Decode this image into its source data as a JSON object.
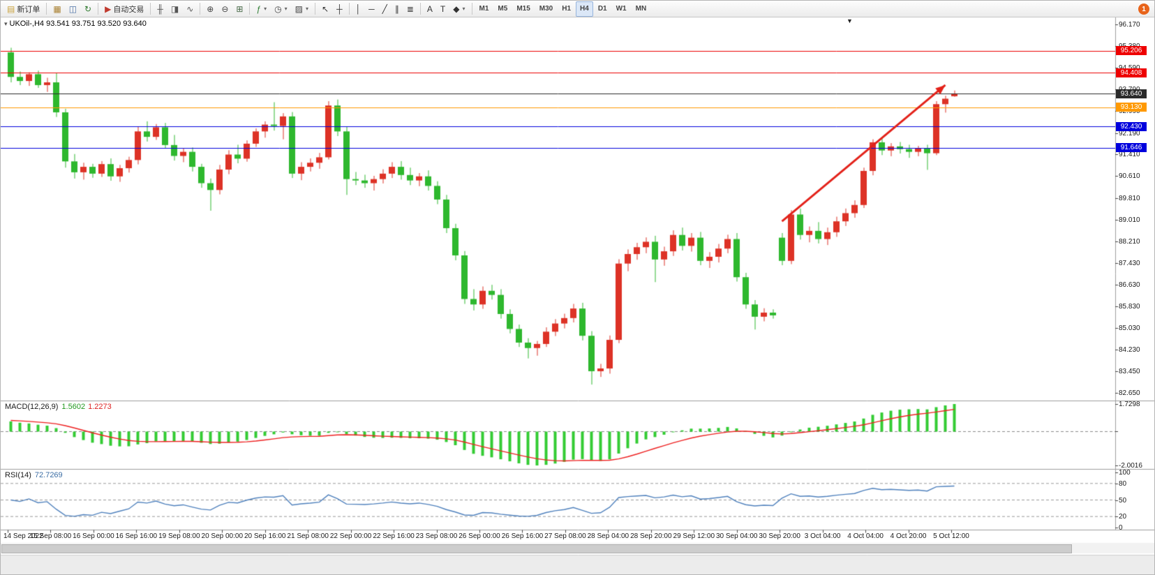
{
  "toolbar": {
    "notification_badge": "1",
    "items": [
      {
        "name": "new-order-button",
        "glyph": "▤",
        "glyph_color": "#c9a23c",
        "label": "新订单"
      },
      {
        "sep": true
      },
      {
        "name": "charts-grid-button",
        "glyph": "▦",
        "glyph_color": "#a87f2f"
      },
      {
        "name": "profile-button",
        "glyph": "◫",
        "glyph_color": "#4a6fa5"
      },
      {
        "name": "refresh-button",
        "glyph": "↻",
        "glyph_color": "#2f7a2f"
      },
      {
        "sep": true
      },
      {
        "name": "auto-trading-button",
        "glyph": "▶",
        "glyph_color": "#c03a2e",
        "label": "自动交易"
      },
      {
        "sep": true
      },
      {
        "name": "bar-chart-button",
        "glyph": "╫",
        "glyph_color": "#555555"
      },
      {
        "name": "candlestick-chart-button",
        "glyph": "◨",
        "glyph_color": "#555555"
      },
      {
        "name": "line-chart-button",
        "glyph": "∿",
        "glyph_color": "#555555"
      },
      {
        "sep": true
      },
      {
        "name": "zoom-in-button",
        "glyph": "⊕",
        "glyph_color": "#444444"
      },
      {
        "name": "zoom-out-button",
        "glyph": "⊖",
        "glyph_color": "#444444"
      },
      {
        "name": "tile-windows-button",
        "glyph": "⊞",
        "glyph_color": "#446644"
      },
      {
        "sep": true
      },
      {
        "name": "indicators-button",
        "glyph": "ƒ",
        "glyph_color": "#2e7d32",
        "dropdown": true
      },
      {
        "name": "periods-button",
        "glyph": "◷",
        "glyph_color": "#444444",
        "dropdown": true
      },
      {
        "name": "templates-button",
        "glyph": "▨",
        "glyph_color": "#444444",
        "dropdown": true
      },
      {
        "sep": true
      },
      {
        "name": "cursor-button",
        "glyph": "↖",
        "glyph_color": "#333333"
      },
      {
        "name": "crosshair-button",
        "glyph": "┼",
        "glyph_color": "#333333"
      },
      {
        "sep": true
      },
      {
        "name": "vertical-line-button",
        "glyph": "│",
        "glyph_color": "#333333"
      },
      {
        "name": "horizontal-line-button",
        "glyph": "─",
        "glyph_color": "#333333"
      },
      {
        "name": "trendline-button",
        "glyph": "╱",
        "glyph_color": "#333333"
      },
      {
        "name": "channel-button",
        "glyph": "∥",
        "glyph_color": "#333333"
      },
      {
        "name": "fibonacci-button",
        "glyph": "≣",
        "glyph_color": "#333333"
      },
      {
        "sep": true
      },
      {
        "name": "text-button",
        "glyph": "A",
        "glyph_color": "#333333"
      },
      {
        "name": "text-label-button",
        "glyph": "T",
        "glyph_color": "#333333"
      },
      {
        "name": "arrows-button",
        "glyph": "◆",
        "glyph_color": "#333333",
        "dropdown": true
      },
      {
        "sep": true
      },
      {
        "name": "timeframe-m1",
        "label": "M1",
        "tf": true
      },
      {
        "name": "timeframe-m5",
        "label": "M5",
        "tf": true
      },
      {
        "name": "timeframe-m15",
        "label": "M15",
        "tf": true
      },
      {
        "name": "timeframe-m30",
        "label": "M30",
        "tf": true
      },
      {
        "name": "timeframe-h1",
        "label": "H1",
        "tf": true
      },
      {
        "name": "timeframe-h4",
        "label": "H4",
        "tf": true,
        "active": true
      },
      {
        "name": "timeframe-d1",
        "label": "D1",
        "tf": true
      },
      {
        "name": "timeframe-w1",
        "label": "W1",
        "tf": true
      },
      {
        "name": "timeframe-mn",
        "label": "MN",
        "tf": true
      }
    ]
  },
  "chart_data": {
    "type": "candlestick",
    "symbol": "UKOil-",
    "timeframe": "H4",
    "title": "UKOil-,H4  93.541 93.751 93.520 93.640",
    "last_bar": {
      "open": 93.541,
      "high": 93.751,
      "low": 93.52,
      "close": 93.64
    },
    "up_color": "#dd3226",
    "down_color": "#2eb82e",
    "price_axis": {
      "min": 82.45,
      "max": 96.33,
      "tick_labels": [
        "96.170",
        "95.380",
        "94.590",
        "93.790",
        "92.990",
        "92.190",
        "91.410",
        "90.610",
        "89.810",
        "89.010",
        "88.210",
        "87.430",
        "86.630",
        "85.830",
        "85.030",
        "84.230",
        "83.450",
        "82.650"
      ]
    },
    "hlines": [
      {
        "price": 95.206,
        "label": "95.206",
        "color": "#ee0000"
      },
      {
        "price": 94.408,
        "label": "94.408",
        "color": "#ee0000"
      },
      {
        "price": 93.64,
        "label": "93.640",
        "color": "#2a2a2a",
        "is_bid": true
      },
      {
        "price": 93.13,
        "label": "93.130",
        "color": "#ff9900"
      },
      {
        "price": 92.43,
        "label": "92.430",
        "color": "#0000dd"
      },
      {
        "price": 91.646,
        "label": "91.646",
        "color": "#0000dd"
      }
    ],
    "candles": [
      [
        95.15,
        95.32,
        94.05,
        94.25
      ],
      [
        94.25,
        94.45,
        93.95,
        94.1
      ],
      [
        94.1,
        94.42,
        93.92,
        94.35
      ],
      [
        94.35,
        94.48,
        93.85,
        93.95
      ],
      [
        93.95,
        94.22,
        93.7,
        94.05
      ],
      [
        94.05,
        94.4,
        92.78,
        92.95
      ],
      [
        92.95,
        93.08,
        90.92,
        91.15
      ],
      [
        91.15,
        91.42,
        90.52,
        90.75
      ],
      [
        90.75,
        91.1,
        90.48,
        90.95
      ],
      [
        90.95,
        91.06,
        90.55,
        90.7
      ],
      [
        90.7,
        91.16,
        90.58,
        91.05
      ],
      [
        91.05,
        91.26,
        90.44,
        90.6
      ],
      [
        90.6,
        91.02,
        90.4,
        90.9
      ],
      [
        90.9,
        91.32,
        90.74,
        91.2
      ],
      [
        91.2,
        92.42,
        91.04,
        92.25
      ],
      [
        92.25,
        92.62,
        91.88,
        92.05
      ],
      [
        92.05,
        92.52,
        91.94,
        92.4
      ],
      [
        92.4,
        92.56,
        91.62,
        91.75
      ],
      [
        91.75,
        92.12,
        91.18,
        91.35
      ],
      [
        91.35,
        91.62,
        91.12,
        91.5
      ],
      [
        91.5,
        91.66,
        90.78,
        90.95
      ],
      [
        90.95,
        91.06,
        90.18,
        90.35
      ],
      [
        90.35,
        90.52,
        89.34,
        90.1
      ],
      [
        90.1,
        91.02,
        89.94,
        90.85
      ],
      [
        90.85,
        91.56,
        90.68,
        91.4
      ],
      [
        91.4,
        91.76,
        91.08,
        91.25
      ],
      [
        91.25,
        91.92,
        91.14,
        91.8
      ],
      [
        91.8,
        92.36,
        91.68,
        92.25
      ],
      [
        92.25,
        92.62,
        92.02,
        92.5
      ],
      [
        92.5,
        93.32,
        92.28,
        92.45
      ],
      [
        92.45,
        92.92,
        91.96,
        92.8
      ],
      [
        92.8,
        92.96,
        90.54,
        90.7
      ],
      [
        90.7,
        91.12,
        90.46,
        90.95
      ],
      [
        90.95,
        91.26,
        90.78,
        91.1
      ],
      [
        91.1,
        91.46,
        90.88,
        91.3
      ],
      [
        91.3,
        93.36,
        91.22,
        93.2
      ],
      [
        93.2,
        93.42,
        92.08,
        92.25
      ],
      [
        92.25,
        92.42,
        89.92,
        90.5
      ],
      [
        90.5,
        90.76,
        90.28,
        90.45
      ],
      [
        90.45,
        90.66,
        90.18,
        90.35
      ],
      [
        90.35,
        90.62,
        90.08,
        90.5
      ],
      [
        90.5,
        90.86,
        90.34,
        90.7
      ],
      [
        90.7,
        91.12,
        90.54,
        90.95
      ],
      [
        90.95,
        91.16,
        90.48,
        90.65
      ],
      [
        90.65,
        90.92,
        90.28,
        90.45
      ],
      [
        90.45,
        90.72,
        90.24,
        90.6
      ],
      [
        90.6,
        90.82,
        90.08,
        90.25
      ],
      [
        90.25,
        90.42,
        89.58,
        89.75
      ],
      [
        89.75,
        89.92,
        88.52,
        88.7
      ],
      [
        88.7,
        88.86,
        87.52,
        87.7
      ],
      [
        87.7,
        87.86,
        85.92,
        86.1
      ],
      [
        86.1,
        86.46,
        85.68,
        85.9
      ],
      [
        85.9,
        86.56,
        85.74,
        86.4
      ],
      [
        86.4,
        86.62,
        86.08,
        86.25
      ],
      [
        86.25,
        86.46,
        85.38,
        85.55
      ],
      [
        85.55,
        85.72,
        84.84,
        85.0
      ],
      [
        85.0,
        85.16,
        84.34,
        84.5
      ],
      [
        84.5,
        84.66,
        83.92,
        84.3
      ],
      [
        84.3,
        84.56,
        84.02,
        84.45
      ],
      [
        84.45,
        85.06,
        84.34,
        84.9
      ],
      [
        84.9,
        85.36,
        84.74,
        85.2
      ],
      [
        85.2,
        85.56,
        85.02,
        85.4
      ],
      [
        85.4,
        85.92,
        85.24,
        85.75
      ],
      [
        85.75,
        85.96,
        84.58,
        84.75
      ],
      [
        84.75,
        84.92,
        82.96,
        83.45
      ],
      [
        83.45,
        83.72,
        83.24,
        83.55
      ],
      [
        83.55,
        84.76,
        83.36,
        84.6
      ],
      [
        84.6,
        87.56,
        84.48,
        87.4
      ],
      [
        87.4,
        87.92,
        87.12,
        87.75
      ],
      [
        87.75,
        88.16,
        87.54,
        88.0
      ],
      [
        88.0,
        88.36,
        87.78,
        88.2
      ],
      [
        88.2,
        88.42,
        86.72,
        87.55
      ],
      [
        87.55,
        88.02,
        87.32,
        87.85
      ],
      [
        87.85,
        88.62,
        87.68,
        88.45
      ],
      [
        88.45,
        88.72,
        87.88,
        88.05
      ],
      [
        88.05,
        88.52,
        87.84,
        88.35
      ],
      [
        88.35,
        88.56,
        87.34,
        87.5
      ],
      [
        87.5,
        87.82,
        87.24,
        87.65
      ],
      [
        87.65,
        88.12,
        87.44,
        87.95
      ],
      [
        87.95,
        88.46,
        87.78,
        88.3
      ],
      [
        88.3,
        88.52,
        86.74,
        86.9
      ],
      [
        86.9,
        87.06,
        85.74,
        85.9
      ],
      [
        85.9,
        86.06,
        84.98,
        85.45
      ],
      [
        85.45,
        85.76,
        85.28,
        85.6
      ],
      [
        85.6,
        85.72,
        85.38,
        85.5
      ],
      [
        88.35,
        88.52,
        87.34,
        87.5
      ],
      [
        87.5,
        89.36,
        87.38,
        89.2
      ],
      [
        89.2,
        89.42,
        88.28,
        88.45
      ],
      [
        88.45,
        88.76,
        88.18,
        88.6
      ],
      [
        88.6,
        88.92,
        88.14,
        88.3
      ],
      [
        88.3,
        88.72,
        88.08,
        88.55
      ],
      [
        88.55,
        89.12,
        88.38,
        88.95
      ],
      [
        88.95,
        89.42,
        88.78,
        89.25
      ],
      [
        89.25,
        89.72,
        89.08,
        89.55
      ],
      [
        89.55,
        90.92,
        89.44,
        90.8
      ],
      [
        90.8,
        91.96,
        90.64,
        91.85
      ],
      [
        91.85,
        92.02,
        91.38,
        91.55
      ],
      [
        91.55,
        91.82,
        91.34,
        91.7
      ],
      [
        91.7,
        91.86,
        91.44,
        91.6
      ],
      [
        91.6,
        91.76,
        91.28,
        91.5
      ],
      [
        91.5,
        91.72,
        91.34,
        91.62
      ],
      [
        91.62,
        91.76,
        90.84,
        91.45
      ],
      [
        91.45,
        93.36,
        91.38,
        93.25
      ],
      [
        93.25,
        93.56,
        92.94,
        93.45
      ],
      [
        93.541,
        93.751,
        93.52,
        93.64
      ]
    ],
    "time_labels": [
      "14 Sep 2022",
      "15 Sep 08:00",
      "16 Sep 00:00",
      "16 Sep 16:00",
      "19 Sep 08:00",
      "20 Sep 00:00",
      "20 Sep 16:00",
      "21 Sep 08:00",
      "22 Sep 00:00",
      "22 Sep 16:00",
      "23 Sep 08:00",
      "26 Sep 00:00",
      "26 Sep 16:00",
      "27 Sep 08:00",
      "28 Sep 04:00",
      "28 Sep 20:00",
      "29 Sep 12:00",
      "30 Sep 04:00",
      "30 Sep 20:00",
      "3 Oct 04:00",
      "4 Oct 04:00",
      "4 Oct 20:00",
      "5 Oct 12:00"
    ],
    "macd": {
      "label": "MACD(12,26,9)",
      "main_value": "1.5602",
      "signal_value": "1.2273",
      "max_label": "1.7298",
      "min_label": "-2.0016",
      "histogram_color": "#33cc33",
      "signal_color": "#ee2020",
      "params": [
        12,
        26,
        9
      ]
    },
    "rsi": {
      "label": "RSI(14)",
      "value": "72.7269",
      "color": "#4f81bd",
      "period": 14,
      "levels": [
        80,
        50,
        20
      ],
      "axis_labels": [
        "100",
        "80",
        "50",
        "20",
        "0"
      ]
    },
    "arrow": {
      "bar1": 85.0,
      "price1": 88.95,
      "bar2": 103.0,
      "price2": 93.95,
      "color": "#e32119"
    }
  }
}
